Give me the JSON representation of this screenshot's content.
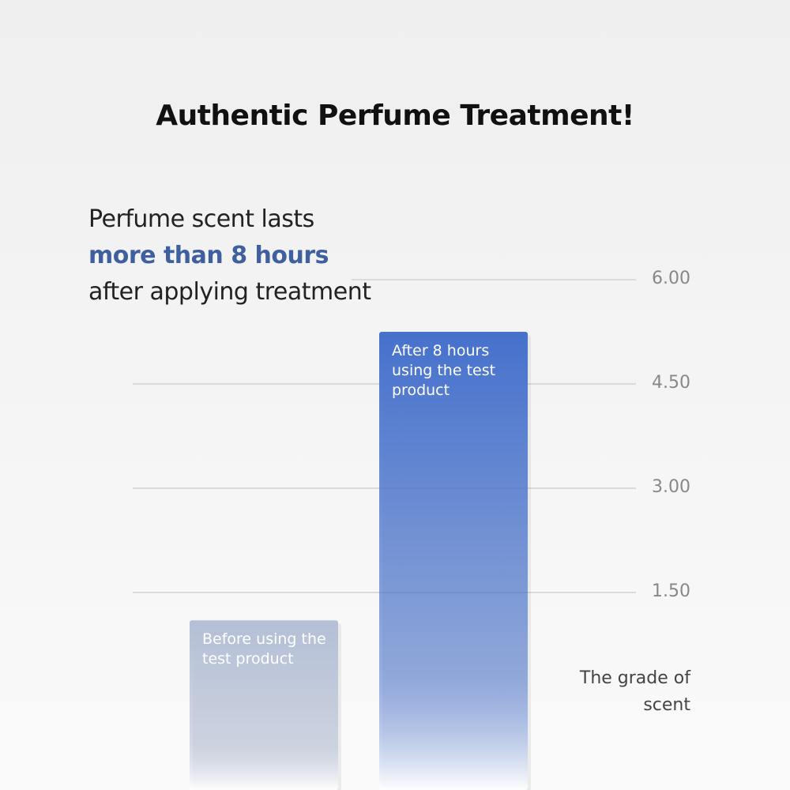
{
  "chart_data": {
    "type": "bar",
    "title": "Authentic Perfume Treatment!",
    "subtitle": [
      "Perfume scent lasts",
      "more than 8 hours",
      "after applying treatment"
    ],
    "y_axis_label": "The grade of scent",
    "categories": [
      "Before using the test product",
      "After 8 hours using the test product"
    ],
    "values": [
      1.1,
      5.25
    ],
    "colors": [
      "#b4bfd6",
      "#4671cc"
    ],
    "ylim": [
      0,
      6
    ],
    "yticks": [
      {
        "value": 1.5,
        "label": "1.50"
      },
      {
        "value": 3,
        "label": "3.00"
      },
      {
        "value": 4.5,
        "label": "4.50"
      },
      {
        "value": 6,
        "label": "6.00"
      }
    ],
    "grid": true
  }
}
